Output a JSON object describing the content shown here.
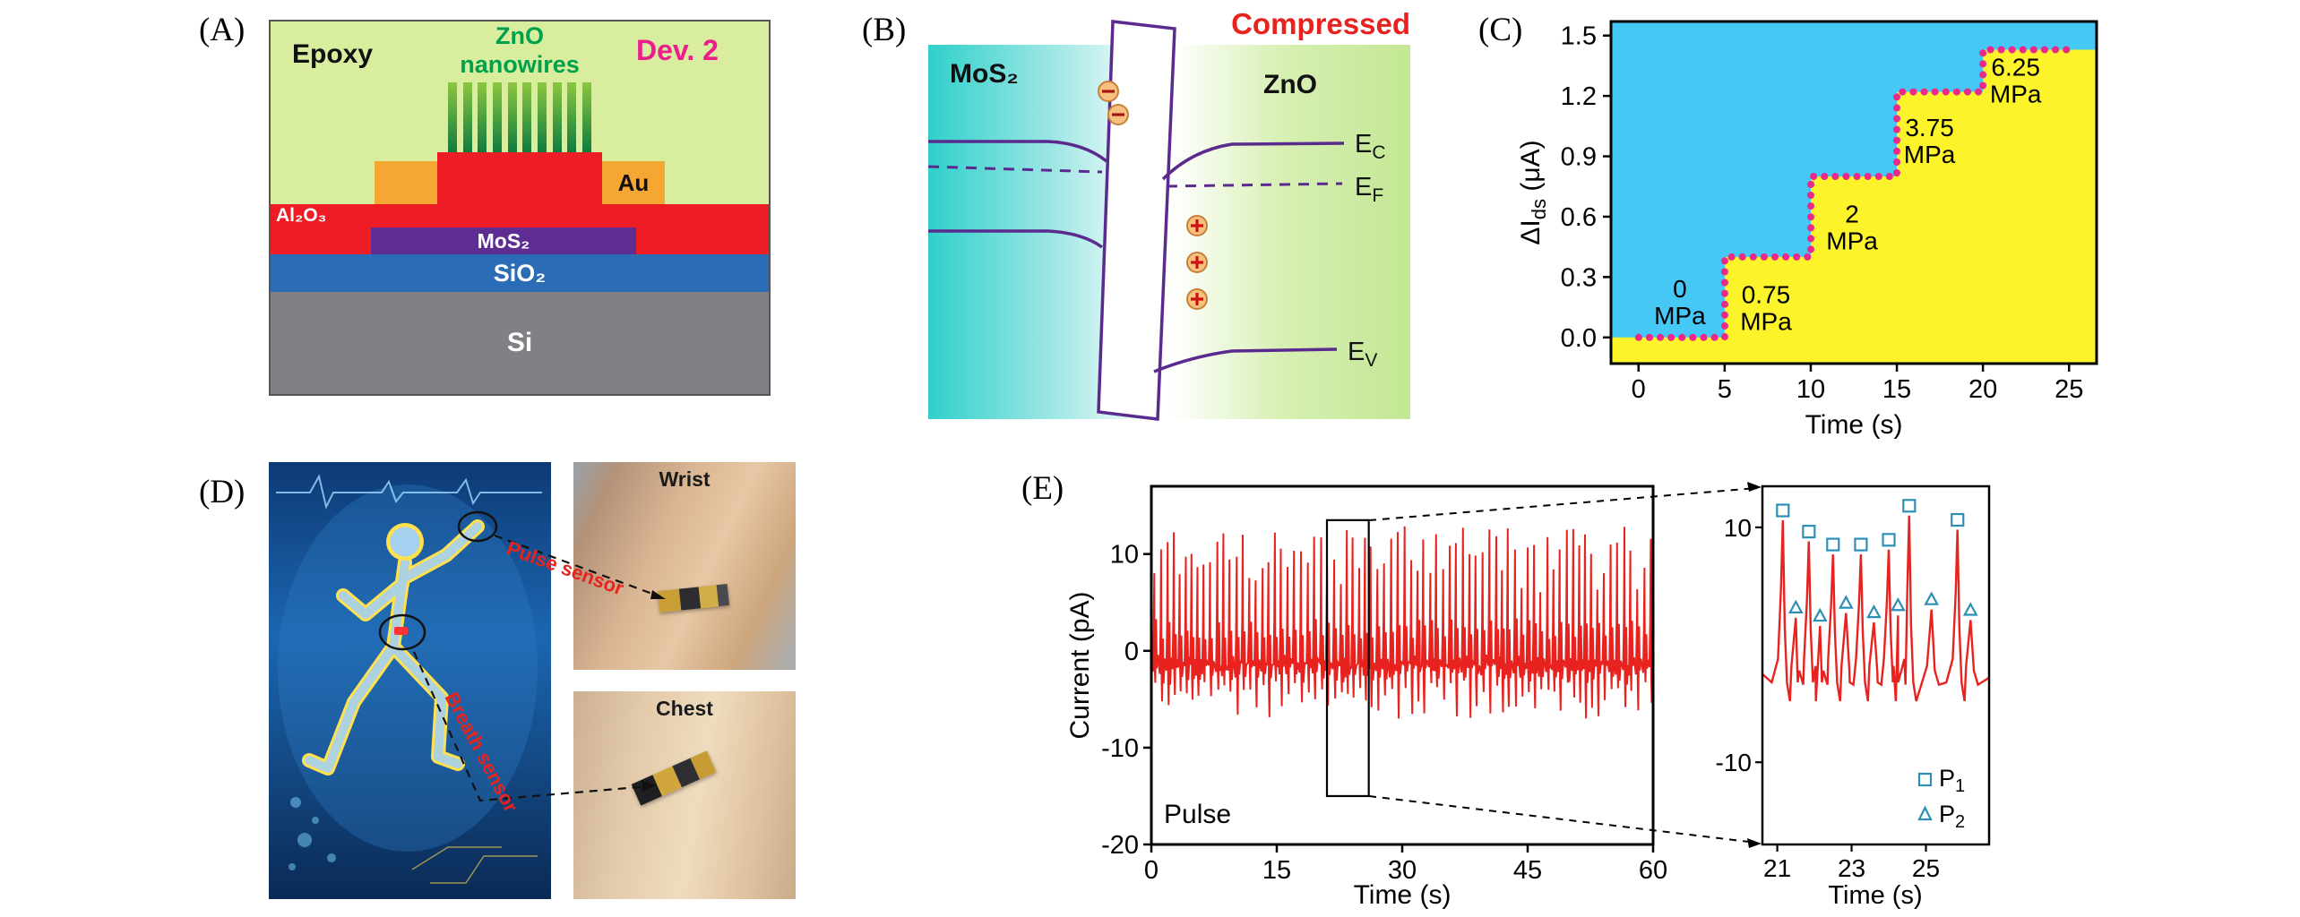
{
  "panel_labels": {
    "a": "(A)",
    "b": "(B)",
    "c": "(C)",
    "d": "(D)",
    "e": "(E)"
  },
  "panel_a": {
    "epoxy": "Epoxy",
    "zno": "ZnO",
    "nanowires": "nanowires",
    "device": "Dev. 2",
    "al2o3": "Al₂O₃",
    "mos2": "MoS₂",
    "au": "Au",
    "sio2": "SiO₂",
    "si": "Si",
    "colors": {
      "epoxy": "#d8ee9e",
      "al2o3_red": "#ee1c25",
      "au_orange": "#f5a733",
      "mos2_purple": "#5f2d91",
      "sio2_blue": "#2a6cb5",
      "si_gray": "#7f8184",
      "nanowire_green": "#0e7c3f",
      "zno_text_green": "#00a14b",
      "device_magenta": "#ec1e8e"
    }
  },
  "panel_b": {
    "compressed": "Compressed",
    "mos2": "MoS₂",
    "zno": "ZnO",
    "ec_main": "E",
    "ec_sub": "C",
    "ef_main": "E",
    "ef_sub": "F",
    "ev_main": "E",
    "ev_sub": "V",
    "colors": {
      "band_line_purple": "#5b2a8e",
      "compressed_red": "#e8231f",
      "mos2_cyan": "#2fd0cb",
      "zno_green": "#c3e794"
    }
  },
  "panel_d": {
    "wrist": "Wrist",
    "chest": "Chest",
    "pulse_sensor": "Pulse sensor",
    "breath_sensor": "Breath sensor"
  },
  "chart_data": [
    {
      "panel": "C",
      "type": "line",
      "subtype": "staircase",
      "xlabel": "Time (s)",
      "ylabel": "ΔIds (μA)",
      "ylabel_main": "ΔI",
      "ylabel_sub": "ds",
      "ylabel_units": " (μA)",
      "x_ticks": [
        0,
        5,
        10,
        15,
        20,
        25
      ],
      "y_ticks": [
        "0.0",
        "0.3",
        "0.6",
        "0.9",
        "1.2",
        "1.5"
      ],
      "xlim": [
        -1.6,
        26.6
      ],
      "ylim": [
        -0.13,
        1.57
      ],
      "steps": [
        {
          "t_start": 0,
          "t_end": 5,
          "value": 0.0,
          "label_value": "0",
          "label_unit": "MPa",
          "label_t": 2.4,
          "label_i": 0.2
        },
        {
          "t_start": 5,
          "t_end": 10,
          "value": 0.4,
          "label_value": "0.75",
          "label_unit": "MPa",
          "label_t": 7.4,
          "label_i": 0.17
        },
        {
          "t_start": 10,
          "t_end": 15,
          "value": 0.8,
          "label_value": "2",
          "label_unit": "MPa",
          "label_t": 12.4,
          "label_i": 0.57
        },
        {
          "t_start": 15,
          "t_end": 20,
          "value": 1.22,
          "label_value": "3.75",
          "label_unit": "MPa",
          "label_t": 16.9,
          "label_i": 1.0
        },
        {
          "t_start": 20,
          "t_end": 25,
          "value": 1.43,
          "label_value": "6.25",
          "label_unit": "MPa",
          "label_t": 21.9,
          "label_i": 1.3
        }
      ],
      "colors": {
        "line": "#ea2a8a",
        "bg": "#45c8f5",
        "fill": "#fdf32b"
      }
    },
    {
      "panel": "E",
      "type": "line",
      "xlabel": "Time (s)",
      "ylabel": "Current (pA)",
      "x_ticks": [
        0,
        15,
        30,
        45,
        60
      ],
      "y_ticks": [
        10,
        0,
        -10,
        -20
      ],
      "xlim": [
        0,
        60
      ],
      "ylim": [
        -20,
        17
      ],
      "annotation": "Pulse",
      "line_color": "#e8231f",
      "pulse_period_s": 0.78,
      "peak_amplitude_pa": [
        6,
        13
      ],
      "trough_amplitude_pa": [
        -7,
        -3
      ],
      "zoom_window_s": [
        21,
        26
      ]
    },
    {
      "panel": "E-inset",
      "type": "line",
      "xlabel": "Time (s)",
      "x_ticks": [
        21,
        23,
        25
      ],
      "y_ticks": [
        10,
        -10
      ],
      "xlim": [
        20.6,
        26.7
      ],
      "ylim": [
        -17,
        13.5
      ],
      "line_color": "#e8231f",
      "marker_color": "#2d8fb5",
      "p1": {
        "label_main": "P",
        "label_sub": "1",
        "marker": "square",
        "points": [
          [
            21.15,
            10.6
          ],
          [
            21.85,
            8.8
          ],
          [
            22.5,
            7.7
          ],
          [
            23.25,
            7.7
          ],
          [
            24.0,
            8.1
          ],
          [
            24.55,
            11.0
          ],
          [
            25.85,
            9.8
          ]
        ]
      },
      "p2": {
        "label_main": "P",
        "label_sub": "2",
        "marker": "triangle",
        "points": [
          [
            21.5,
            2.3
          ],
          [
            22.15,
            1.6
          ],
          [
            22.85,
            2.7
          ],
          [
            23.6,
            1.9
          ],
          [
            24.25,
            2.5
          ],
          [
            25.15,
            3.0
          ],
          [
            26.2,
            2.1
          ]
        ]
      }
    }
  ]
}
